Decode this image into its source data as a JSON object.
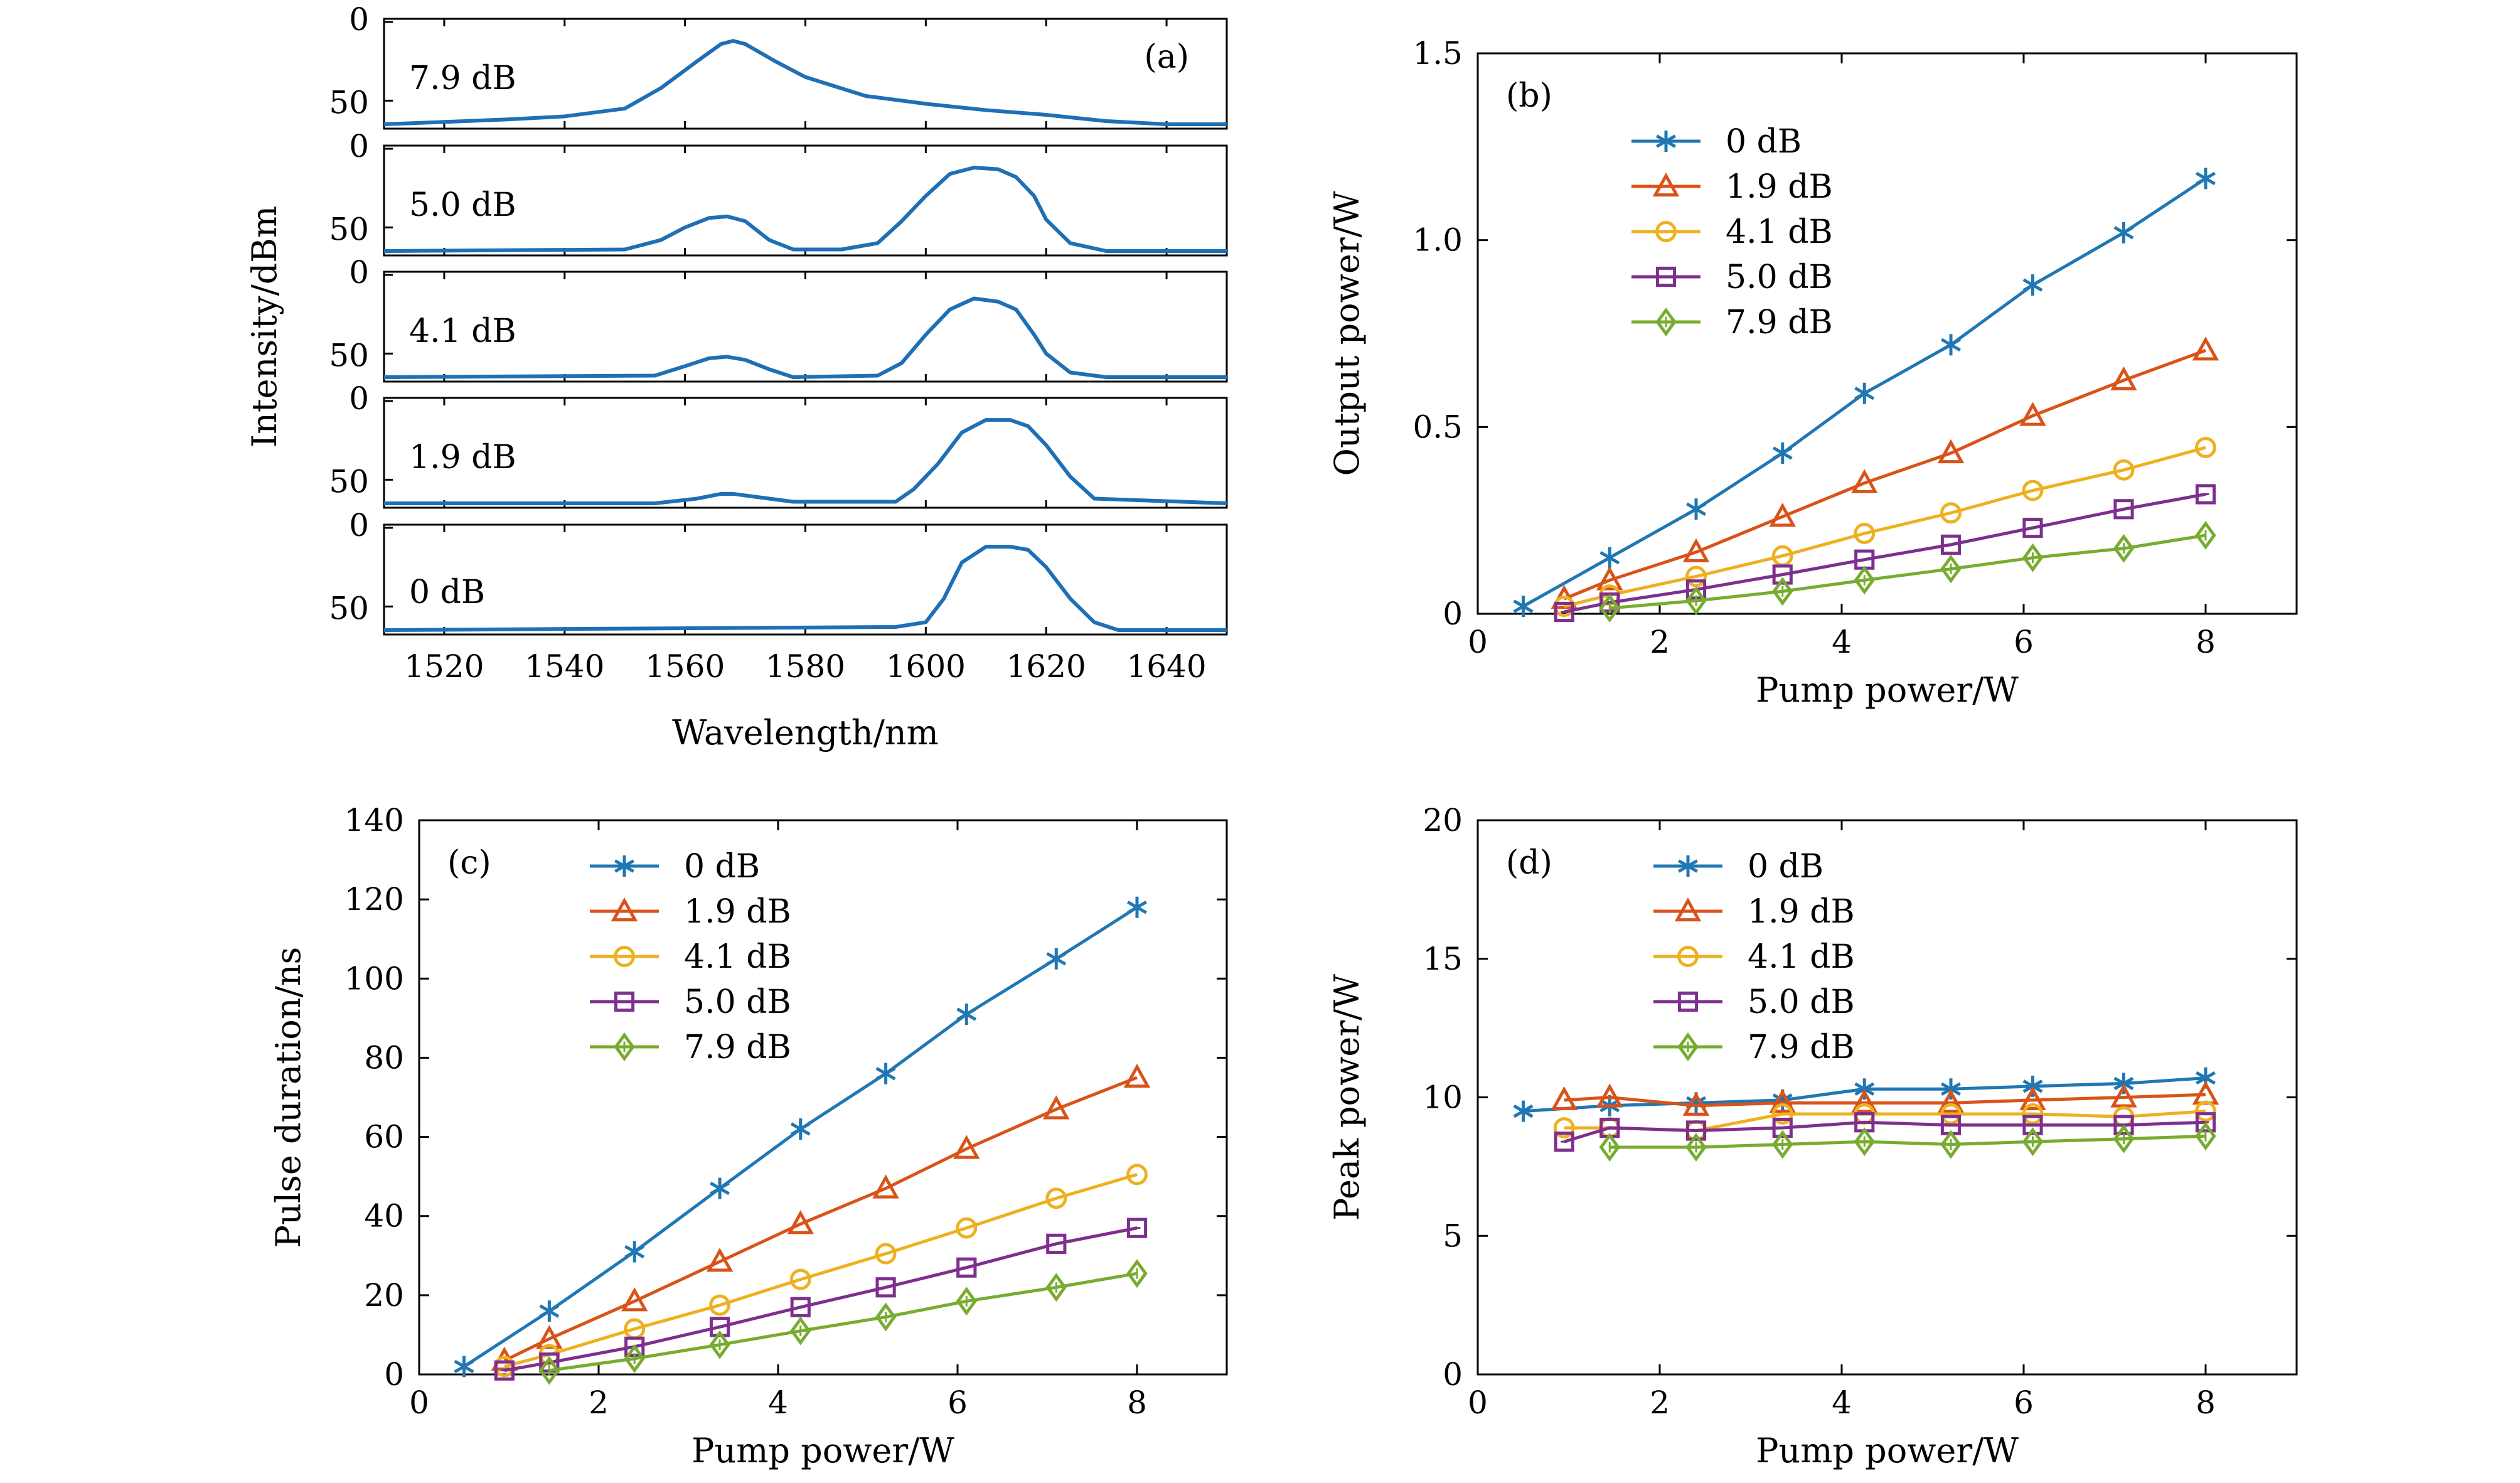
{
  "chart_data": [
    {
      "panel": "(a)",
      "type": "line",
      "xlabel": "Wavelength/nm",
      "ylabel": "Intensity/dBm",
      "xlim": [
        1510,
        1650
      ],
      "x_ticks": [
        1520,
        1540,
        1560,
        1580,
        1600,
        1620,
        1640
      ],
      "ylim": [
        0,
        65
      ],
      "y_ticks": [
        0,
        50
      ],
      "y_inverted": true,
      "color": "#1f6fb5",
      "subplots": [
        {
          "label": "7.9 dB",
          "x": [
            1510,
            1530,
            1540,
            1550,
            1556,
            1562,
            1566,
            1568,
            1570,
            1575,
            1580,
            1590,
            1600,
            1610,
            1620,
            1630,
            1640,
            1650
          ],
          "y": [
            65,
            62,
            60,
            55,
            42,
            25,
            14,
            12,
            14,
            25,
            35,
            47,
            52,
            56,
            59,
            63,
            65,
            65
          ]
        },
        {
          "label": "5.0 dB",
          "x": [
            1510,
            1550,
            1556,
            1560,
            1564,
            1567,
            1570,
            1574,
            1578,
            1586,
            1592,
            1596,
            1600,
            1604,
            1608,
            1612,
            1615,
            1618,
            1620,
            1624,
            1630,
            1650
          ],
          "y": [
            65,
            64,
            58,
            50,
            44,
            43,
            46,
            58,
            64,
            64,
            60,
            46,
            30,
            16,
            12,
            13,
            18,
            30,
            45,
            60,
            65,
            65
          ]
        },
        {
          "label": "4.1 dB",
          "x": [
            1510,
            1555,
            1560,
            1564,
            1567,
            1570,
            1574,
            1578,
            1592,
            1596,
            1600,
            1604,
            1608,
            1612,
            1615,
            1618,
            1620,
            1624,
            1630,
            1650
          ],
          "y": [
            65,
            64,
            58,
            53,
            52,
            54,
            60,
            65,
            64,
            56,
            38,
            22,
            15,
            17,
            22,
            38,
            50,
            62,
            65,
            65
          ]
        },
        {
          "label": "1.9 dB",
          "x": [
            1510,
            1555,
            1562,
            1566,
            1568,
            1572,
            1578,
            1595,
            1598,
            1602,
            1606,
            1610,
            1614,
            1617,
            1620,
            1624,
            1628,
            1650
          ],
          "y": [
            65,
            65,
            62,
            59,
            59,
            61,
            64,
            64,
            56,
            40,
            20,
            12,
            12,
            16,
            28,
            48,
            62,
            65
          ]
        },
        {
          "label": "0 dB",
          "x": [
            1510,
            1595,
            1600,
            1603,
            1606,
            1610,
            1614,
            1617,
            1620,
            1624,
            1628,
            1632,
            1650
          ],
          "y": [
            65,
            63,
            60,
            45,
            22,
            12,
            12,
            14,
            25,
            45,
            60,
            65,
            65
          ]
        }
      ]
    },
    {
      "panel": "(b)",
      "type": "line",
      "xlabel": "Pump power/W",
      "ylabel": "Output power/W",
      "xlim": [
        0,
        9
      ],
      "ylim": [
        0,
        1.5
      ],
      "x_ticks": [
        0,
        2,
        4,
        6,
        8
      ],
      "y_ticks": [
        0,
        0.5,
        1.0,
        1.5
      ],
      "y_tick_labels": [
        "0",
        "0.5",
        "1.0",
        "1.5"
      ],
      "legend": "upper-left",
      "series": [
        {
          "name": "0 dB",
          "color": "#1f77b4",
          "marker": "star",
          "x": [
            0.5,
            1.45,
            2.4,
            3.35,
            4.25,
            5.2,
            6.1,
            7.1,
            8.0
          ],
          "y": [
            0.02,
            0.15,
            0.28,
            0.43,
            0.59,
            0.72,
            0.88,
            1.02,
            1.165
          ]
        },
        {
          "name": "1.9 dB",
          "color": "#d95319",
          "marker": "triangle",
          "x": [
            0.95,
            1.45,
            2.4,
            3.35,
            4.25,
            5.2,
            6.1,
            7.1,
            8.0
          ],
          "y": [
            0.04,
            0.09,
            0.165,
            0.26,
            0.35,
            0.43,
            0.53,
            0.625,
            0.705
          ]
        },
        {
          "name": "4.1 dB",
          "color": "#edb120",
          "marker": "circle",
          "x": [
            0.95,
            1.45,
            2.4,
            3.35,
            4.25,
            5.2,
            6.1,
            7.1,
            8.0
          ],
          "y": [
            0.02,
            0.05,
            0.1,
            0.155,
            0.215,
            0.27,
            0.33,
            0.385,
            0.445
          ]
        },
        {
          "name": "5.0 dB",
          "color": "#7e2f8e",
          "marker": "square",
          "x": [
            0.95,
            1.45,
            2.4,
            3.35,
            4.25,
            5.2,
            6.1,
            7.1,
            8.0
          ],
          "y": [
            0.005,
            0.03,
            0.065,
            0.105,
            0.145,
            0.185,
            0.23,
            0.28,
            0.32
          ]
        },
        {
          "name": "7.9 dB",
          "color": "#77ac30",
          "marker": "diamond",
          "x": [
            1.45,
            2.4,
            3.35,
            4.25,
            5.2,
            6.1,
            7.1,
            8.0
          ],
          "y": [
            0.015,
            0.035,
            0.06,
            0.09,
            0.12,
            0.15,
            0.175,
            0.21
          ]
        }
      ]
    },
    {
      "panel": "(c)",
      "type": "line",
      "xlabel": "Pump power/W",
      "ylabel": "Pulse duration/ns",
      "xlim": [
        0,
        9
      ],
      "ylim": [
        0,
        140
      ],
      "x_ticks": [
        0,
        2,
        4,
        6,
        8
      ],
      "y_ticks": [
        0,
        20,
        40,
        60,
        80,
        100,
        120,
        140
      ],
      "legend": "upper-left",
      "series": [
        {
          "name": "0 dB",
          "color": "#1f77b4",
          "marker": "star",
          "x": [
            0.5,
            1.45,
            2.4,
            3.35,
            4.25,
            5.2,
            6.1,
            7.1,
            8.0
          ],
          "y": [
            2,
            16,
            31,
            47,
            62,
            76,
            91,
            105,
            118
          ]
        },
        {
          "name": "1.9 dB",
          "color": "#d95319",
          "marker": "triangle",
          "x": [
            0.95,
            1.45,
            2.4,
            3.35,
            4.25,
            5.2,
            6.1,
            7.1,
            8.0
          ],
          "y": [
            3.5,
            9,
            18.5,
            28.5,
            38,
            47,
            57,
            67,
            75
          ]
        },
        {
          "name": "4.1 dB",
          "color": "#edb120",
          "marker": "circle",
          "x": [
            0.95,
            1.45,
            2.4,
            3.35,
            4.25,
            5.2,
            6.1,
            7.1,
            8.0
          ],
          "y": [
            2,
            5,
            11.5,
            17.5,
            24,
            30.5,
            37,
            44.5,
            50.5
          ]
        },
        {
          "name": "5.0 dB",
          "color": "#7e2f8e",
          "marker": "square",
          "x": [
            0.95,
            1.45,
            2.4,
            3.35,
            4.25,
            5.2,
            6.1,
            7.1,
            8.0
          ],
          "y": [
            1,
            3,
            7,
            12,
            17,
            22,
            27,
            33,
            37
          ]
        },
        {
          "name": "7.9 dB",
          "color": "#77ac30",
          "marker": "diamond",
          "x": [
            1.45,
            2.4,
            3.35,
            4.25,
            5.2,
            6.1,
            7.1,
            8.0
          ],
          "y": [
            1,
            4,
            7.5,
            11,
            14.5,
            18.5,
            22,
            25.5
          ]
        }
      ]
    },
    {
      "panel": "(d)",
      "type": "line",
      "xlabel": "Pump power/W",
      "ylabel": "Peak power/W",
      "xlim": [
        0,
        9
      ],
      "ylim": [
        0,
        20
      ],
      "x_ticks": [
        0,
        2,
        4,
        6,
        8
      ],
      "y_ticks": [
        0,
        5,
        10,
        15,
        20
      ],
      "legend": "upper-left",
      "series": [
        {
          "name": "0 dB",
          "color": "#1f77b4",
          "marker": "star",
          "x": [
            0.5,
            1.45,
            2.4,
            3.35,
            4.25,
            5.2,
            6.1,
            7.1,
            8.0
          ],
          "y": [
            9.5,
            9.7,
            9.8,
            9.9,
            10.3,
            10.3,
            10.4,
            10.5,
            10.7
          ]
        },
        {
          "name": "1.9 dB",
          "color": "#d95319",
          "marker": "triangle",
          "x": [
            0.95,
            1.45,
            2.4,
            3.35,
            4.25,
            5.2,
            6.1,
            7.1,
            8.0
          ],
          "y": [
            9.9,
            10,
            9.7,
            9.8,
            9.8,
            9.8,
            9.9,
            10,
            10.1
          ]
        },
        {
          "name": "4.1 dB",
          "color": "#edb120",
          "marker": "circle",
          "x": [
            0.95,
            1.45,
            2.4,
            3.35,
            4.25,
            5.2,
            6.1,
            7.1,
            8.0
          ],
          "y": [
            8.9,
            8.9,
            8.8,
            9.4,
            9.4,
            9.4,
            9.4,
            9.3,
            9.5
          ]
        },
        {
          "name": "5.0 dB",
          "color": "#7e2f8e",
          "marker": "square",
          "x": [
            0.95,
            1.45,
            2.4,
            3.35,
            4.25,
            5.2,
            6.1,
            7.1,
            8.0
          ],
          "y": [
            8.4,
            8.9,
            8.8,
            8.9,
            9.1,
            9.0,
            9.0,
            9.0,
            9.1
          ]
        },
        {
          "name": "7.9 dB",
          "color": "#77ac30",
          "marker": "diamond",
          "x": [
            1.45,
            2.4,
            3.35,
            4.25,
            5.2,
            6.1,
            7.1,
            8.0
          ],
          "y": [
            8.2,
            8.2,
            8.3,
            8.4,
            8.3,
            8.4,
            8.5,
            8.6
          ]
        }
      ]
    }
  ]
}
